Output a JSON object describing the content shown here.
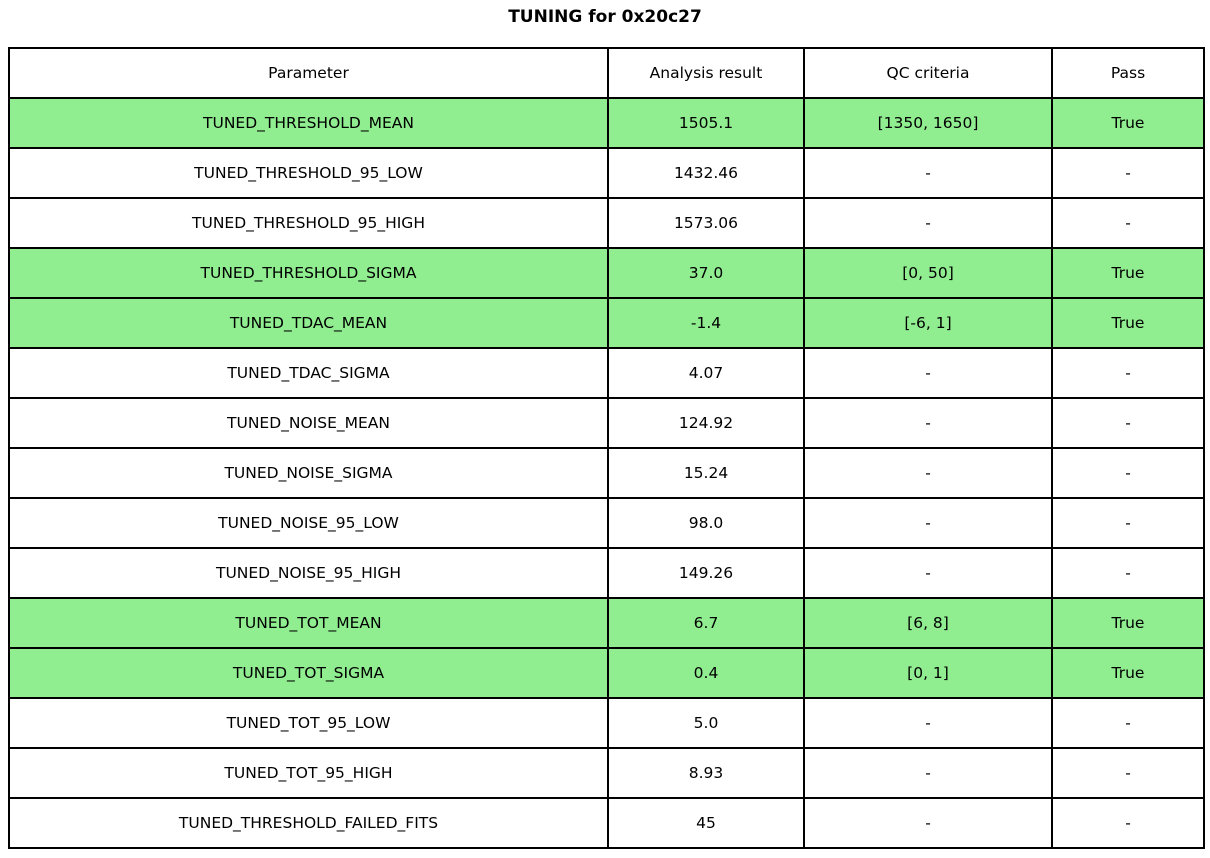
{
  "title": "TUNING for 0x20c27",
  "colors": {
    "highlight_green": "#90EE90",
    "row_default": "#ffffff",
    "border": "#000000",
    "text": "#000000"
  },
  "table": {
    "headers": [
      "Parameter",
      "Analysis result",
      "QC criteria",
      "Pass"
    ],
    "rows": [
      {
        "parameter": "TUNED_THRESHOLD_MEAN",
        "result": "1505.1",
        "qc": "[1350, 1650]",
        "pass": "True",
        "highlighted": true
      },
      {
        "parameter": "TUNED_THRESHOLD_95_LOW",
        "result": "1432.46",
        "qc": "-",
        "pass": "-",
        "highlighted": false
      },
      {
        "parameter": "TUNED_THRESHOLD_95_HIGH",
        "result": "1573.06",
        "qc": "-",
        "pass": "-",
        "highlighted": false
      },
      {
        "parameter": "TUNED_THRESHOLD_SIGMA",
        "result": "37.0",
        "qc": "[0, 50]",
        "pass": "True",
        "highlighted": true
      },
      {
        "parameter": "TUNED_TDAC_MEAN",
        "result": "-1.4",
        "qc": "[-6, 1]",
        "pass": "True",
        "highlighted": true
      },
      {
        "parameter": "TUNED_TDAC_SIGMA",
        "result": "4.07",
        "qc": "-",
        "pass": "-",
        "highlighted": false
      },
      {
        "parameter": "TUNED_NOISE_MEAN",
        "result": "124.92",
        "qc": "-",
        "pass": "-",
        "highlighted": false
      },
      {
        "parameter": "TUNED_NOISE_SIGMA",
        "result": "15.24",
        "qc": "-",
        "pass": "-",
        "highlighted": false
      },
      {
        "parameter": "TUNED_NOISE_95_LOW",
        "result": "98.0",
        "qc": "-",
        "pass": "-",
        "highlighted": false
      },
      {
        "parameter": "TUNED_NOISE_95_HIGH",
        "result": "149.26",
        "qc": "-",
        "pass": "-",
        "highlighted": false
      },
      {
        "parameter": "TUNED_TOT_MEAN",
        "result": "6.7",
        "qc": "[6, 8]",
        "pass": "True",
        "highlighted": true
      },
      {
        "parameter": "TUNED_TOT_SIGMA",
        "result": "0.4",
        "qc": "[0, 1]",
        "pass": "True",
        "highlighted": true
      },
      {
        "parameter": "TUNED_TOT_95_LOW",
        "result": "5.0",
        "qc": "-",
        "pass": "-",
        "highlighted": false
      },
      {
        "parameter": "TUNED_TOT_95_HIGH",
        "result": "8.93",
        "qc": "-",
        "pass": "-",
        "highlighted": false
      },
      {
        "parameter": "TUNED_THRESHOLD_FAILED_FITS",
        "result": "45",
        "qc": "-",
        "pass": "-",
        "highlighted": false
      }
    ]
  },
  "chart_data": {
    "type": "table",
    "title": "TUNING for 0x20c27",
    "columns": [
      "Parameter",
      "Analysis result",
      "QC criteria",
      "Pass"
    ],
    "cells": [
      [
        "TUNED_THRESHOLD_MEAN",
        1505.1,
        "[1350, 1650]",
        "True"
      ],
      [
        "TUNED_THRESHOLD_95_LOW",
        1432.46,
        "-",
        "-"
      ],
      [
        "TUNED_THRESHOLD_95_HIGH",
        1573.06,
        "-",
        "-"
      ],
      [
        "TUNED_THRESHOLD_SIGMA",
        37.0,
        "[0, 50]",
        "True"
      ],
      [
        "TUNED_TDAC_MEAN",
        -1.4,
        "[-6, 1]",
        "True"
      ],
      [
        "TUNED_TDAC_SIGMA",
        4.07,
        "-",
        "-"
      ],
      [
        "TUNED_NOISE_MEAN",
        124.92,
        "-",
        "-"
      ],
      [
        "TUNED_NOISE_SIGMA",
        15.24,
        "-",
        "-"
      ],
      [
        "TUNED_NOISE_95_LOW",
        98.0,
        "-",
        "-"
      ],
      [
        "TUNED_NOISE_95_HIGH",
        149.26,
        "-",
        "-"
      ],
      [
        "TUNED_TOT_MEAN",
        6.7,
        "[6, 8]",
        "True"
      ],
      [
        "TUNED_TOT_SIGMA",
        0.4,
        "[0, 1]",
        "True"
      ],
      [
        "TUNED_TOT_95_LOW",
        5.0,
        "-",
        "-"
      ],
      [
        "TUNED_TOT_95_HIGH",
        8.93,
        "-",
        "-"
      ],
      [
        "TUNED_THRESHOLD_FAILED_FITS",
        45,
        "-",
        "-"
      ]
    ],
    "highlighted_rows": [
      0,
      3,
      4,
      10,
      11
    ],
    "highlight_color": "#90EE90",
    "layout": "header row on top, all cells center-aligned, black 2px grid borders"
  }
}
